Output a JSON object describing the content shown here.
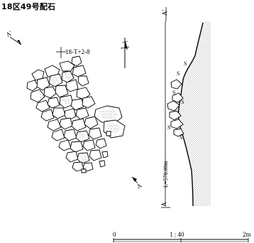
{
  "figure": {
    "title": "18区49号配石",
    "grid_point_label": "18-T+2-8",
    "section_label_top": "A'",
    "section_label_bottom": "A",
    "plan_label_a": "A",
    "plan_label_a_prime": "A'",
    "level_label": "L=578.00m",
    "stone_mark": "S",
    "scale": {
      "left": "0",
      "middle": "1 : 40",
      "right": "2m"
    }
  }
}
